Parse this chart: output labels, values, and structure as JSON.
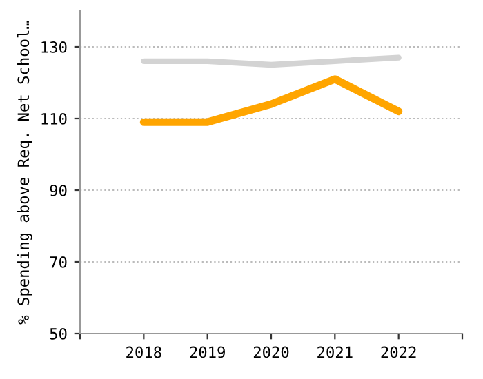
{
  "chart_data": {
    "type": "line",
    "ylabel": "% Spending above Req. Net School…",
    "x": [
      2018,
      2019,
      2020,
      2021,
      2022
    ],
    "series": [
      {
        "color": "#d3d3d3",
        "values": [
          126,
          126,
          125,
          126,
          127
        ]
      },
      {
        "color": "#ffa500",
        "values": [
          109,
          109,
          114,
          121,
          112
        ]
      }
    ],
    "xlim": [
      2017,
      2023
    ],
    "xticks": [
      {
        "value": 2017,
        "label": null
      },
      2018,
      2019,
      2020,
      2021,
      2022,
      {
        "value": 2023,
        "label": null
      }
    ],
    "ylim": [
      50,
      140
    ],
    "yticks": [
      50,
      70,
      90,
      110,
      130
    ],
    "grid": "y",
    "legend": false
  }
}
